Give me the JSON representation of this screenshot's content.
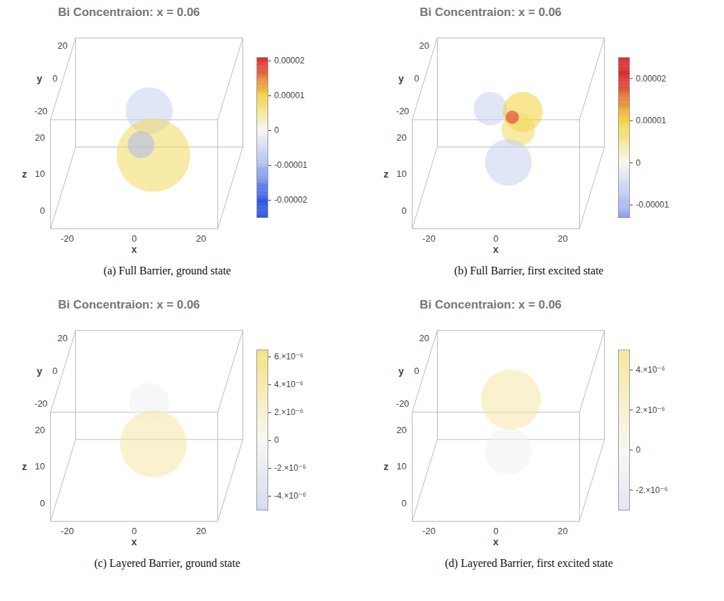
{
  "chart_data": [
    {
      "type": "volume",
      "title": "Bi Concentraion: x = 0.06",
      "caption": "(a) Full Barrier, ground state",
      "x_label": "x",
      "y_label": "y",
      "z_label": "z",
      "xlim": [
        -25,
        25
      ],
      "ylim": [
        -25,
        25
      ],
      "zlim": [
        -5,
        25
      ],
      "xticks": [
        -20,
        0,
        20
      ],
      "yticks": [
        -20,
        0,
        20
      ],
      "zticks": [
        0,
        10,
        20
      ],
      "lobes": [
        {
          "x": 0,
          "y": 5,
          "z": 14,
          "radius": 7,
          "value": -6e-06
        },
        {
          "x": 2,
          "y": 0,
          "z": 4,
          "radius": 11,
          "value": 8e-06
        },
        {
          "x": -2,
          "y": 2,
          "z": 6,
          "radius": 4,
          "value": -1e-05
        }
      ],
      "colorbar": {
        "range": [
          -2.5e-05,
          2.1e-05
        ],
        "ticks": [
          {
            "value": -2e-05,
            "label": "-0.00002"
          },
          {
            "value": -1e-05,
            "label": "-0.00001"
          },
          0,
          {
            "value": 1e-05,
            "label": "0.00001"
          },
          {
            "value": 2e-05,
            "label": "0.00002"
          }
        ],
        "color_domain": [
          -2e-05,
          -1e-05,
          0,
          1e-05,
          2e-05
        ],
        "colors": [
          "#2a52e4",
          "#aab8f0",
          "#f7f7f2",
          "#f2d23a",
          "#d8262b"
        ]
      }
    },
    {
      "type": "volume",
      "title": "Bi Concentraion: x = 0.06",
      "caption": "(b) Full Barrier, first excited state",
      "x_label": "x",
      "y_label": "y",
      "z_label": "z",
      "xlim": [
        -25,
        25
      ],
      "ylim": [
        -25,
        25
      ],
      "zlim": [
        -5,
        25
      ],
      "xticks": [
        -20,
        0,
        20
      ],
      "yticks": [
        -20,
        0,
        20
      ],
      "zticks": [
        0,
        10,
        20
      ],
      "lobes": [
        {
          "x": -6,
          "y": 4,
          "z": 15,
          "radius": 5,
          "value": -6e-06
        },
        {
          "x": 4,
          "y": 2,
          "z": 15,
          "radius": 6,
          "value": 1e-05
        },
        {
          "x": 3,
          "y": 0,
          "z": 11,
          "radius": 5,
          "value": 8e-06
        },
        {
          "x": 1,
          "y": 1,
          "z": 14,
          "radius": 2,
          "value": 2e-05
        },
        {
          "x": 0,
          "y": 0,
          "z": 2,
          "radius": 7,
          "value": -6e-06
        }
      ],
      "colorbar": {
        "range": [
          -1.3e-05,
          2.5e-05
        ],
        "ticks": [
          {
            "value": -1e-05,
            "label": "-0.00001"
          },
          0,
          {
            "value": 1e-05,
            "label": "0.00001"
          },
          {
            "value": 2e-05,
            "label": "0.00002"
          }
        ],
        "color_domain": [
          -2e-05,
          -1e-05,
          0,
          1e-05,
          2e-05
        ],
        "colors": [
          "#2a52e4",
          "#aab8f0",
          "#f7f7f2",
          "#f2d23a",
          "#d8262b"
        ]
      }
    },
    {
      "type": "volume",
      "title": "Bi Concentraion: x = 0.06",
      "caption": "(c) Layered Barrier, ground state",
      "x_label": "x",
      "y_label": "y",
      "z_label": "z",
      "xlim": [
        -25,
        25
      ],
      "ylim": [
        -25,
        25
      ],
      "zlim": [
        -5,
        25
      ],
      "xticks": [
        -20,
        0,
        20
      ],
      "yticks": [
        -20,
        0,
        20
      ],
      "zticks": [
        0,
        10,
        20
      ],
      "lobes": [
        {
          "x": 0,
          "y": 5,
          "z": 14,
          "radius": 6,
          "value": -1e-06
        },
        {
          "x": 2,
          "y": 0,
          "z": 5,
          "radius": 10,
          "value": 4e-06
        }
      ],
      "colorbar": {
        "range": [
          -5e-06,
          6.5e-06
        ],
        "ticks": [
          {
            "value": -4e-06,
            "label": "-4.×10⁻⁶"
          },
          {
            "value": -2e-06,
            "label": "-2.×10⁻⁶"
          },
          0,
          {
            "value": 2e-06,
            "label": "2.×10⁻⁶"
          },
          {
            "value": 4e-06,
            "label": "4.×10⁻⁶"
          },
          {
            "value": 6e-06,
            "label": "6.×10⁻⁶"
          }
        ],
        "color_domain": [
          -2e-05,
          -1e-05,
          0,
          1e-05,
          2e-05
        ],
        "colors": [
          "#2a52e4",
          "#aab8f0",
          "#f7f7f2",
          "#f2d23a",
          "#d8262b"
        ]
      }
    },
    {
      "type": "volume",
      "title": "Bi Concentraion: x = 0.06",
      "caption": "(d) Layered Barrier, first excited state",
      "x_label": "x",
      "y_label": "y",
      "z_label": "z",
      "xlim": [
        -25,
        25
      ],
      "ylim": [
        -25,
        25
      ],
      "zlim": [
        -5,
        25
      ],
      "xticks": [
        -20,
        0,
        20
      ],
      "yticks": [
        -20,
        0,
        20
      ],
      "zticks": [
        0,
        10,
        20
      ],
      "lobes": [
        {
          "x": 0,
          "y": 5,
          "z": 15,
          "radius": 9,
          "value": 4e-06
        },
        {
          "x": 0,
          "y": 0,
          "z": 3,
          "radius": 7,
          "value": -8e-07
        }
      ],
      "colorbar": {
        "range": [
          -3e-06,
          5e-06
        ],
        "ticks": [
          {
            "value": -2e-06,
            "label": "-2.×10⁻⁶"
          },
          0,
          {
            "value": 2e-06,
            "label": "2.×10⁻⁶"
          },
          {
            "value": 4e-06,
            "label": "4.×10⁻⁶"
          }
        ],
        "color_domain": [
          -2e-05,
          -1e-05,
          0,
          1e-05,
          2e-05
        ],
        "colors": [
          "#2a52e4",
          "#aab8f0",
          "#f7f7f2",
          "#f2d23a",
          "#d8262b"
        ]
      }
    }
  ]
}
